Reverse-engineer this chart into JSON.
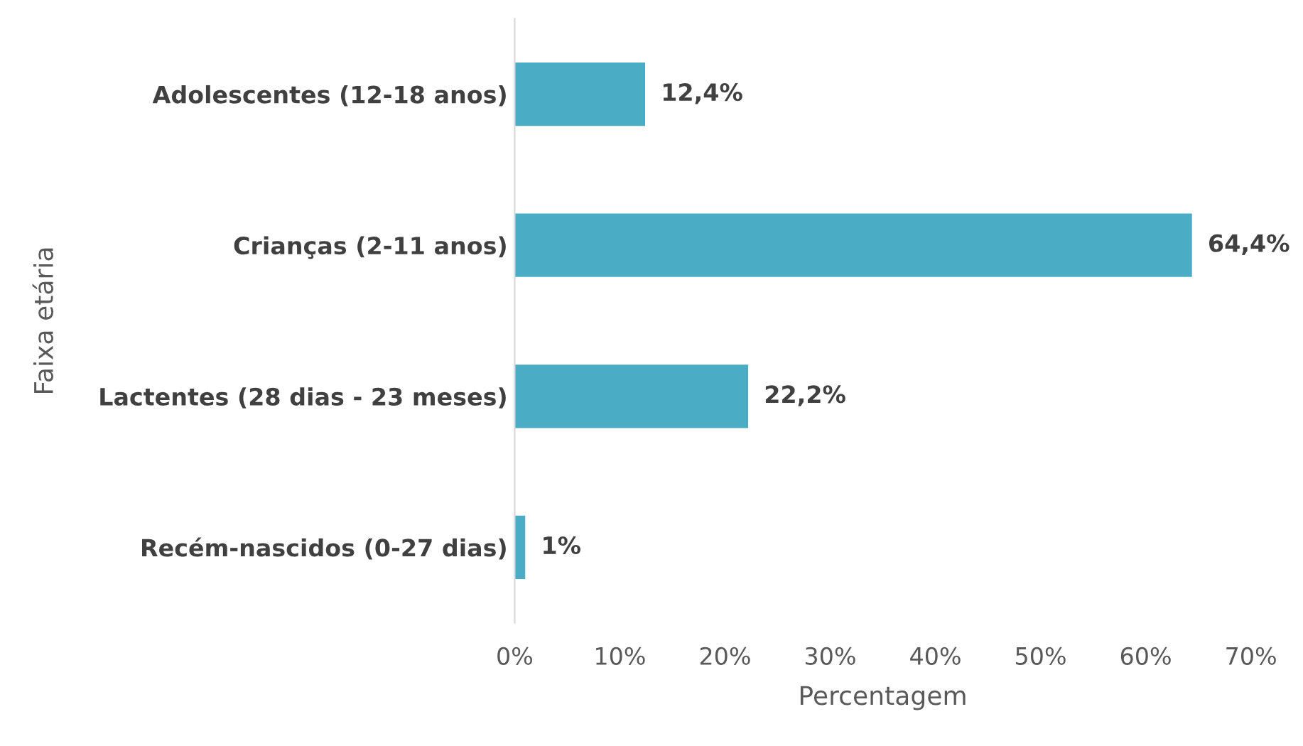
{
  "chart_data": {
    "type": "bar",
    "orientation": "horizontal",
    "xlabel": "Percentagem",
    "ylabel": "Faixa etária",
    "categories": [
      "Adolescentes (12-18 anos)",
      "Crianças (2-11 anos)",
      "Lactentes (28 dias - 23 meses)",
      "Recém-nascidos (0-27 dias)"
    ],
    "values": [
      12.4,
      64.4,
      22.2,
      1
    ],
    "value_labels": [
      "12,4%",
      "64,4%",
      "22,2%",
      "1%"
    ],
    "color": "#4bacc6",
    "xlim": [
      0,
      70
    ],
    "xticks": [
      {
        "value": 0,
        "label": "0%"
      },
      {
        "value": 10,
        "label": "10%"
      },
      {
        "value": 20,
        "label": "20%"
      },
      {
        "value": 30,
        "label": "30%"
      },
      {
        "value": 40,
        "label": "40%"
      },
      {
        "value": 50,
        "label": "50%"
      },
      {
        "value": 60,
        "label": "60%"
      },
      {
        "value": 70,
        "label": "70%"
      }
    ],
    "grid": false,
    "legend": false
  }
}
